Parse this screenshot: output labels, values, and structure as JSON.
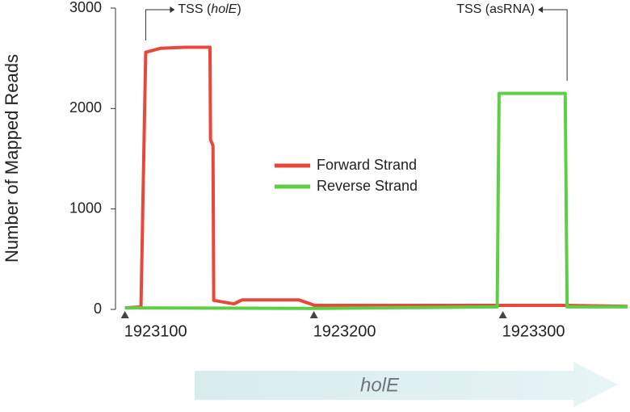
{
  "chart_data": {
    "type": "line",
    "y_label": "Number of Mapped Reads",
    "xlim": [
      1923098,
      1923366
    ],
    "ylim": [
      0,
      3000
    ],
    "xticks": [
      1923100,
      1923200,
      1923300
    ],
    "yticks": [
      0,
      1000,
      2000,
      3000
    ],
    "legend": "center",
    "series": [
      {
        "name": "Forward Strand",
        "color": "#e8483a",
        "x": [
          1923100,
          1923108.5,
          1923109.4,
          1923111,
          1923119,
          1923132,
          1923145,
          1923145.3,
          1923146.6,
          1923147,
          1923157.7,
          1923162,
          1923192,
          1923200.4,
          1923247,
          1923333,
          1923366
        ],
        "values": [
          15,
          25,
          950,
          2560,
          2600,
          2610,
          2610,
          1690,
          1630,
          90,
          55,
          95,
          95,
          40,
          40,
          40,
          30
        ]
      },
      {
        "name": "Reverse Strand",
        "color": "#5ccf45",
        "x": [
          1923100,
          1923204,
          1923297,
          1923298,
          1923333,
          1923334,
          1923366
        ],
        "values": [
          15,
          10,
          25,
          2150,
          2150,
          25,
          25
        ]
      }
    ],
    "annotations": [
      {
        "parts": [
          "TSS (",
          "holE",
          ")"
        ],
        "x": 1923111
      },
      {
        "parts": [
          "TSS (asRNA)"
        ],
        "x": 1923334
      }
    ],
    "gene": {
      "label": "holE"
    }
  }
}
